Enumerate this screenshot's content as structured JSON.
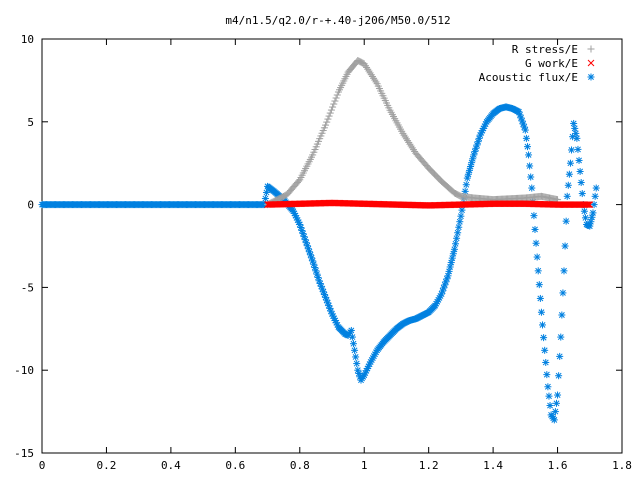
{
  "chart_data": {
    "type": "scatter",
    "title": "m4/n1.5/q2.0/r-+.40-j206/M50.0/512",
    "xlabel": "",
    "ylabel": "",
    "xlim": [
      0,
      1.8
    ],
    "ylim": [
      -15,
      10
    ],
    "x_ticks": [
      0,
      0.2,
      0.4,
      0.6,
      0.8,
      1,
      1.2,
      1.4,
      1.6,
      1.8
    ],
    "x_tick_labels": [
      "0",
      "0.2",
      "0.4",
      "0.6",
      "0.8",
      "1",
      "1.2",
      "1.4",
      "1.6",
      "1.8"
    ],
    "y_ticks": [
      -15,
      -10,
      -5,
      0,
      5,
      10
    ],
    "y_tick_labels": [
      "-15",
      "-10",
      "-5",
      "0",
      "5",
      "10"
    ],
    "grid": false,
    "legend_position": "top-right",
    "series": [
      {
        "name": "R stress/E",
        "marker": "plus",
        "color": "#a0a0a0",
        "x": [
          0.7,
          0.76,
          0.8,
          0.84,
          0.88,
          0.92,
          0.95,
          0.98,
          1.0,
          1.04,
          1.08,
          1.12,
          1.16,
          1.2,
          1.24,
          1.28,
          1.3,
          1.34,
          1.4,
          1.5,
          1.55,
          1.6
        ],
        "y": [
          0,
          0.6,
          1.5,
          3.0,
          4.8,
          6.8,
          8.0,
          8.7,
          8.5,
          7.3,
          5.7,
          4.3,
          3.1,
          2.2,
          1.4,
          0.7,
          0.5,
          0.4,
          0.3,
          0.4,
          0.5,
          0.3
        ]
      },
      {
        "name": "G work/E",
        "marker": "cross",
        "color": "#ff0000",
        "x": [
          0.7,
          0.8,
          0.9,
          1.0,
          1.1,
          1.2,
          1.3,
          1.4,
          1.5,
          1.6,
          1.7
        ],
        "y": [
          0,
          0.05,
          0.1,
          0.05,
          0,
          -0.05,
          0,
          0.05,
          0.05,
          0,
          0
        ]
      },
      {
        "name": "Acoustic flux/E",
        "marker": "asterisk",
        "color": "#0080e0",
        "x": [
          0.0,
          0.69,
          0.7,
          0.72,
          0.75,
          0.78,
          0.8,
          0.82,
          0.84,
          0.86,
          0.88,
          0.9,
          0.92,
          0.94,
          0.95,
          0.96,
          0.97,
          0.98,
          0.99,
          1.0,
          1.02,
          1.04,
          1.06,
          1.08,
          1.1,
          1.12,
          1.14,
          1.16,
          1.18,
          1.2,
          1.22,
          1.24,
          1.26,
          1.28,
          1.3,
          1.31,
          1.32,
          1.34,
          1.36,
          1.38,
          1.4,
          1.42,
          1.44,
          1.46,
          1.48,
          1.5,
          1.51,
          1.52,
          1.53,
          1.54,
          1.55,
          1.56,
          1.57,
          1.58,
          1.59,
          1.6,
          1.61,
          1.62,
          1.63,
          1.64,
          1.65,
          1.66,
          1.67,
          1.68,
          1.69,
          1.7,
          1.71,
          1.72
        ],
        "y": [
          0,
          0,
          1.1,
          0.8,
          0.3,
          -0.4,
          -1.2,
          -2.3,
          -3.4,
          -4.6,
          -5.6,
          -6.6,
          -7.4,
          -7.8,
          -7.9,
          -7.6,
          -8.8,
          -10.0,
          -10.6,
          -10.3,
          -9.5,
          -8.8,
          -8.3,
          -7.9,
          -7.5,
          -7.2,
          -7.0,
          -6.9,
          -6.7,
          -6.5,
          -6.1,
          -5.4,
          -4.3,
          -2.7,
          -0.7,
          0.4,
          1.6,
          3.0,
          4.2,
          5.0,
          5.5,
          5.8,
          5.9,
          5.8,
          5.6,
          4.5,
          3.0,
          1.0,
          -1.5,
          -4.0,
          -6.5,
          -8.8,
          -11.0,
          -12.7,
          -13.0,
          -11.5,
          -8.0,
          -4.0,
          0.5,
          2.5,
          4.9,
          4.0,
          2.0,
          0.0,
          -1.2,
          -1.3,
          -0.5,
          1.0
        ]
      }
    ]
  }
}
